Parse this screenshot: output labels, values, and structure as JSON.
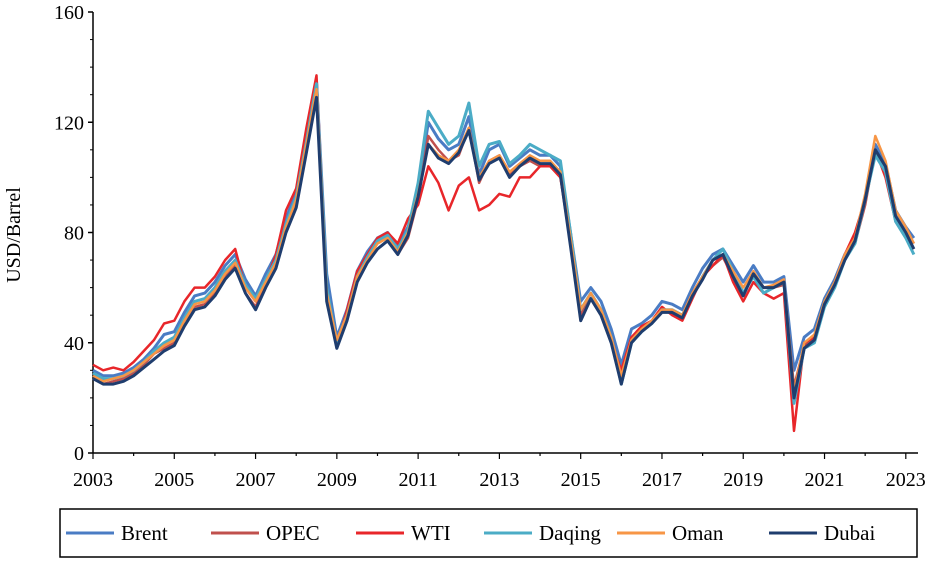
{
  "chart_data": {
    "type": "line",
    "title": "",
    "xlabel": "",
    "ylabel": "USD/Barrel",
    "xlim": [
      2003,
      2023.3
    ],
    "ylim": [
      0,
      160
    ],
    "x_ticks": [
      "2003",
      "2005",
      "2007",
      "2009",
      "2011",
      "2013",
      "2015",
      "2017",
      "2019",
      "2021",
      "2023"
    ],
    "y_ticks": [
      "0",
      "40",
      "80",
      "120",
      "160"
    ],
    "grid": false,
    "legend_position": "bottom",
    "x": [
      2003.0,
      2003.25,
      2003.5,
      2003.75,
      2004.0,
      2004.25,
      2004.5,
      2004.75,
      2005.0,
      2005.25,
      2005.5,
      2005.75,
      2006.0,
      2006.25,
      2006.5,
      2006.75,
      2007.0,
      2007.25,
      2007.5,
      2007.75,
      2008.0,
      2008.25,
      2008.5,
      2008.75,
      2009.0,
      2009.25,
      2009.5,
      2009.75,
      2010.0,
      2010.25,
      2010.5,
      2010.75,
      2011.0,
      2011.25,
      2011.5,
      2011.75,
      2012.0,
      2012.25,
      2012.5,
      2012.75,
      2013.0,
      2013.25,
      2013.5,
      2013.75,
      2014.0,
      2014.25,
      2014.5,
      2014.75,
      2015.0,
      2015.25,
      2015.5,
      2015.75,
      2016.0,
      2016.25,
      2016.5,
      2016.75,
      2017.0,
      2017.25,
      2017.5,
      2017.75,
      2018.0,
      2018.25,
      2018.5,
      2018.75,
      2019.0,
      2019.25,
      2019.5,
      2019.75,
      2020.0,
      2020.25,
      2020.5,
      2020.75,
      2021.0,
      2021.25,
      2021.5,
      2021.75,
      2022.0,
      2022.25,
      2022.5,
      2022.75,
      2023.0,
      2023.2
    ],
    "series": [
      {
        "name": "Brent",
        "color": "#4a7cc4",
        "width": 3,
        "values": [
          30,
          28,
          28,
          29,
          31,
          34,
          38,
          43,
          44,
          51,
          57,
          58,
          62,
          68,
          72,
          63,
          57,
          65,
          72,
          85,
          95,
          115,
          135,
          65,
          42,
          52,
          66,
          73,
          78,
          80,
          75,
          82,
          95,
          120,
          114,
          110,
          112,
          122,
          101,
          110,
          112,
          104,
          107,
          110,
          108,
          108,
          104,
          80,
          55,
          60,
          55,
          45,
          32,
          45,
          47,
          50,
          55,
          54,
          52,
          60,
          67,
          72,
          74,
          68,
          62,
          68,
          62,
          62,
          64,
          30,
          42,
          45,
          56,
          63,
          72,
          78,
          92,
          112,
          105,
          88,
          82,
          78
        ]
      },
      {
        "name": "OPEC",
        "color": "#c0504d",
        "width": 2.5,
        "values": [
          27,
          25,
          26,
          27,
          29,
          32,
          36,
          38,
          40,
          48,
          53,
          54,
          58,
          64,
          68,
          58,
          53,
          62,
          69,
          82,
          90,
          110,
          130,
          58,
          40,
          50,
          64,
          70,
          74,
          77,
          72,
          78,
          92,
          115,
          110,
          106,
          108,
          118,
          98,
          106,
          108,
          101,
          104,
          106,
          104,
          104,
          100,
          76,
          50,
          58,
          52,
          42,
          28,
          42,
          45,
          48,
          52,
          51,
          50,
          58,
          64,
          68,
          71,
          64,
          58,
          64,
          58,
          60,
          61,
          24,
          39,
          42,
          54,
          61,
          70,
          76,
          90,
          110,
          103,
          86,
          80,
          76
        ]
      },
      {
        "name": "WTI",
        "color": "#e8262a",
        "width": 2.5,
        "values": [
          32,
          30,
          31,
          30,
          33,
          37,
          41,
          47,
          48,
          55,
          60,
          60,
          64,
          70,
          74,
          60,
          55,
          62,
          72,
          88,
          96,
          118,
          137,
          60,
          38,
          52,
          66,
          72,
          78,
          80,
          76,
          85,
          90,
          104,
          98,
          88,
          97,
          100,
          88,
          90,
          94,
          93,
          100,
          100,
          104,
          104,
          100,
          78,
          48,
          56,
          50,
          40,
          30,
          42,
          46,
          48,
          53,
          50,
          48,
          56,
          64,
          68,
          72,
          62,
          55,
          62,
          58,
          56,
          58,
          8,
          40,
          42,
          54,
          62,
          72,
          80,
          92,
          110,
          100,
          84,
          78,
          74
        ]
      },
      {
        "name": "Daqing",
        "color": "#4bacc6",
        "width": 3,
        "values": [
          29,
          27,
          27,
          28,
          30,
          33,
          37,
          40,
          42,
          49,
          55,
          56,
          60,
          66,
          70,
          61,
          56,
          63,
          70,
          83,
          93,
          113,
          134,
          60,
          40,
          50,
          64,
          71,
          77,
          79,
          74,
          81,
          98,
          124,
          118,
          112,
          115,
          127,
          104,
          112,
          113,
          105,
          108,
          112,
          110,
          108,
          106,
          80,
          52,
          58,
          52,
          42,
          25,
          40,
          44,
          47,
          52,
          52,
          50,
          57,
          64,
          70,
          74,
          66,
          58,
          64,
          58,
          60,
          62,
          18,
          38,
          40,
          53,
          60,
          70,
          76,
          92,
          108,
          102,
          84,
          78,
          72
        ]
      },
      {
        "name": "Oman",
        "color": "#f79646",
        "width": 2.5,
        "values": [
          28,
          26,
          27,
          28,
          30,
          33,
          36,
          39,
          41,
          48,
          54,
          55,
          59,
          65,
          69,
          60,
          55,
          62,
          69,
          82,
          92,
          112,
          132,
          58,
          41,
          50,
          64,
          70,
          76,
          78,
          73,
          80,
          94,
          112,
          108,
          106,
          110,
          118,
          100,
          106,
          108,
          102,
          105,
          108,
          106,
          106,
          102,
          78,
          52,
          58,
          52,
          42,
          28,
          41,
          45,
          48,
          52,
          52,
          50,
          58,
          64,
          70,
          72,
          66,
          60,
          66,
          60,
          61,
          63,
          22,
          40,
          43,
          55,
          62,
          72,
          78,
          94,
          115,
          106,
          88,
          82,
          76
        ]
      },
      {
        "name": "Dubai",
        "color": "#1f3d6e",
        "width": 3,
        "values": [
          27,
          25,
          25,
          26,
          28,
          31,
          34,
          37,
          39,
          46,
          52,
          53,
          57,
          63,
          67,
          58,
          52,
          60,
          67,
          80,
          89,
          109,
          129,
          55,
          38,
          48,
          62,
          69,
          74,
          77,
          72,
          79,
          93,
          112,
          107,
          105,
          109,
          117,
          99,
          105,
          107,
          100,
          104,
          107,
          105,
          105,
          101,
          75,
          48,
          56,
          50,
          40,
          25,
          40,
          44,
          47,
          51,
          51,
          49,
          57,
          63,
          70,
          72,
          64,
          57,
          65,
          60,
          60,
          62,
          20,
          38,
          41,
          54,
          61,
          70,
          77,
          92,
          110,
          104,
          86,
          80,
          74
        ]
      }
    ],
    "legend": [
      "Brent",
      "OPEC",
      "WTI",
      "Daqing",
      "Oman",
      "Dubai"
    ]
  }
}
